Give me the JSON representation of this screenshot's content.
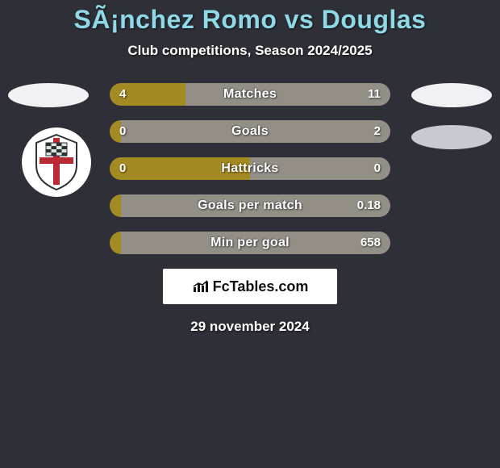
{
  "background_color": "#2e2f37",
  "title": {
    "text": "SÃ¡nchez Romo vs Douglas",
    "color": "#8fd8e8",
    "fontsize": 32
  },
  "subtitle": {
    "text": "Club competitions, Season 2024/2025",
    "color": "#ffffff",
    "fontsize": 17
  },
  "flags": {
    "left_color": "#f1f1f3",
    "right1_color": "#f1f1f3",
    "right2_color": "#c9cacf"
  },
  "badge": {
    "bg": "#ffffff",
    "cross_color": "#bb2a33",
    "checker_dark": "#2e2f37",
    "checker_light": "#d9e6dc"
  },
  "bar_colors": {
    "left": "#a48a22",
    "right": "#938f87",
    "track": "#938f87"
  },
  "rows": [
    {
      "label": "Matches",
      "left_val": "4",
      "right_val": "11",
      "left_pct": 27,
      "right_pct": 73
    },
    {
      "label": "Goals",
      "left_val": "0",
      "right_val": "2",
      "left_pct": 4,
      "right_pct": 96
    },
    {
      "label": "Hattricks",
      "left_val": "0",
      "right_val": "0",
      "left_pct": 50,
      "right_pct": 50
    },
    {
      "label": "Goals per match",
      "left_val": "",
      "right_val": "0.18",
      "left_pct": 4,
      "right_pct": 96
    },
    {
      "label": "Min per goal",
      "left_val": "",
      "right_val": "658",
      "left_pct": 4,
      "right_pct": 96
    }
  ],
  "footer": {
    "bg": "#ffffff",
    "brand_prefix": "Fc",
    "brand_suffix": "Tables.com",
    "icon_color": "#111111"
  },
  "date": {
    "text": "29 november 2024",
    "color": "#ffffff",
    "fontsize": 17
  }
}
